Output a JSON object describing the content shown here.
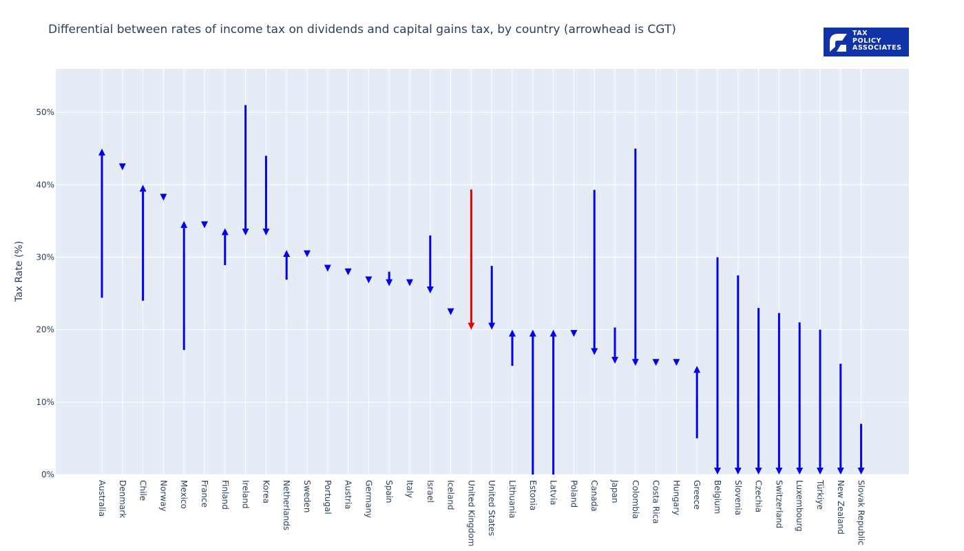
{
  "title": "Differential between rates of income tax on dividends and capital gains tax, by country (arrowhead is CGT)",
  "logo": {
    "lines": [
      "TAX",
      "POLICY",
      "ASSOCIATES"
    ],
    "color": "#1133aa",
    "icon": "tax-policy-associates-logo-icon"
  },
  "colors": {
    "default_arrow": "#0000ee",
    "highlight_arrow": "#ee0000",
    "plot_bg": "#e5ecf6",
    "grid": "#ffffff",
    "text": "#2a3f5f"
  },
  "chart_data": {
    "type": "arrow",
    "title": "Differential between rates of income tax on dividends and capital gains tax, by country (arrowhead is CGT)",
    "xlabel": "",
    "ylabel": "Tax Rate (%)",
    "ylim": [
      0,
      56
    ],
    "yticks": [
      0,
      10,
      20,
      30,
      40,
      50
    ],
    "ytick_labels": [
      "0%",
      "10%",
      "20%",
      "30%",
      "40%",
      "50%"
    ],
    "grid": true,
    "highlight": "United Kingdom",
    "categories": [
      "Australia",
      "Denmark",
      "Chile",
      "Norway",
      "Mexico",
      "France",
      "Finland",
      "Ireland",
      "Korea",
      "Netherlands",
      "Sweden",
      "Portugal",
      "Austria",
      "Germany",
      "Spain",
      "Italy",
      "Israel",
      "Iceland",
      "United Kingdom",
      "United States",
      "Lithuania",
      "Estonia",
      "Latvia",
      "Poland",
      "Canada",
      "Japan",
      "Colombia",
      "Costa Rica",
      "Hungary",
      "Greece",
      "Belgium",
      "Slovenia",
      "Czechia",
      "Switzerland",
      "Luxembourg",
      "Türkiye",
      "New Zealand",
      "Slovak Republic"
    ],
    "series": [
      {
        "name": "Dividend tax rate",
        "values": [
          24.4,
          42.0,
          24.0,
          37.8,
          17.2,
          34.0,
          28.9,
          51.0,
          44.0,
          26.9,
          30.0,
          28.0,
          27.5,
          26.4,
          28.0,
          26.0,
          33.0,
          22.0,
          39.35,
          28.8,
          15.0,
          0.0,
          0.0,
          19.0,
          39.3,
          20.3,
          45.0,
          15.0,
          15.0,
          5.0,
          30.0,
          27.5,
          23.0,
          22.3,
          21.0,
          20.0,
          15.3,
          7.0
        ]
      },
      {
        "name": "Capital gains tax rate",
        "values": [
          45.0,
          42.0,
          40.0,
          37.8,
          35.0,
          34.0,
          34.0,
          33.0,
          33.0,
          31.0,
          30.0,
          28.0,
          27.5,
          26.4,
          26.0,
          26.0,
          25.0,
          22.0,
          20.0,
          20.0,
          20.0,
          20.0,
          20.0,
          19.0,
          16.5,
          15.3,
          15.0,
          15.0,
          15.0,
          15.0,
          0.0,
          0.0,
          0.0,
          0.0,
          0.0,
          0.0,
          0.0,
          0.0
        ]
      }
    ]
  }
}
